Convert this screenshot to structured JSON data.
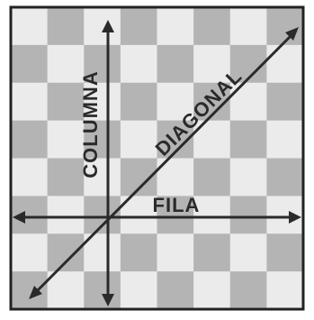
{
  "diagram": {
    "labels": {
      "column": "COLUMNA",
      "diagonal": "DIAGONAL",
      "row": "FILA"
    },
    "board": {
      "rows": 8,
      "cols": 8,
      "dark_square_color": "#b4b4b4",
      "light_square_color": "#ebebeb",
      "border_color": "#222222"
    },
    "line_color": "#2a2a2a",
    "text_color": "#2a2a2a"
  }
}
